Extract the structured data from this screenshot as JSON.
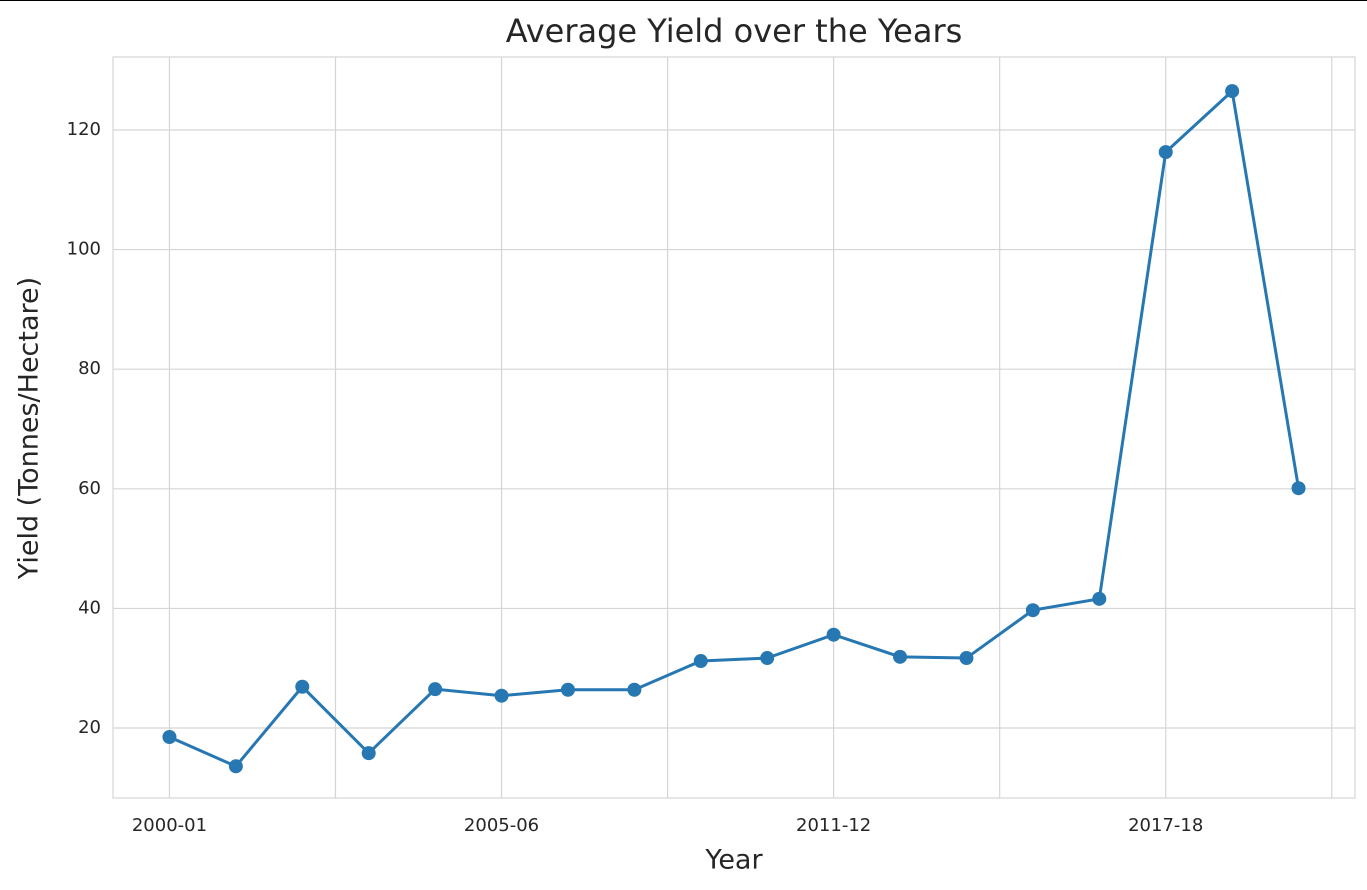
{
  "chart_data": {
    "type": "line",
    "title": "Average Yield over the Years",
    "x_label": "Year",
    "y_label": "Yield (Tonnes/Hectare)",
    "categories": [
      "2000-01",
      null,
      null,
      null,
      null,
      "2005-06",
      null,
      null,
      null,
      null,
      "2011-12",
      null,
      null,
      null,
      null,
      "2017-18",
      null,
      null
    ],
    "values": [
      18.5,
      13.6,
      26.9,
      15.8,
      26.5,
      25.4,
      26.4,
      26.4,
      31.2,
      31.7,
      35.6,
      31.9,
      31.7,
      39.7,
      41.6,
      116.3,
      126.5,
      60.1
    ],
    "color": "#2677b2",
    "markers": true,
    "xlim": [
      -0.85,
      17.85
    ],
    "xticks": [
      0,
      2.5,
      5,
      7.5,
      10,
      12.5,
      15,
      17.5
    ],
    "ylim": [
      8.3,
      132.2
    ],
    "yticks": [
      20,
      40,
      60,
      80,
      100,
      120
    ],
    "grid": true
  }
}
